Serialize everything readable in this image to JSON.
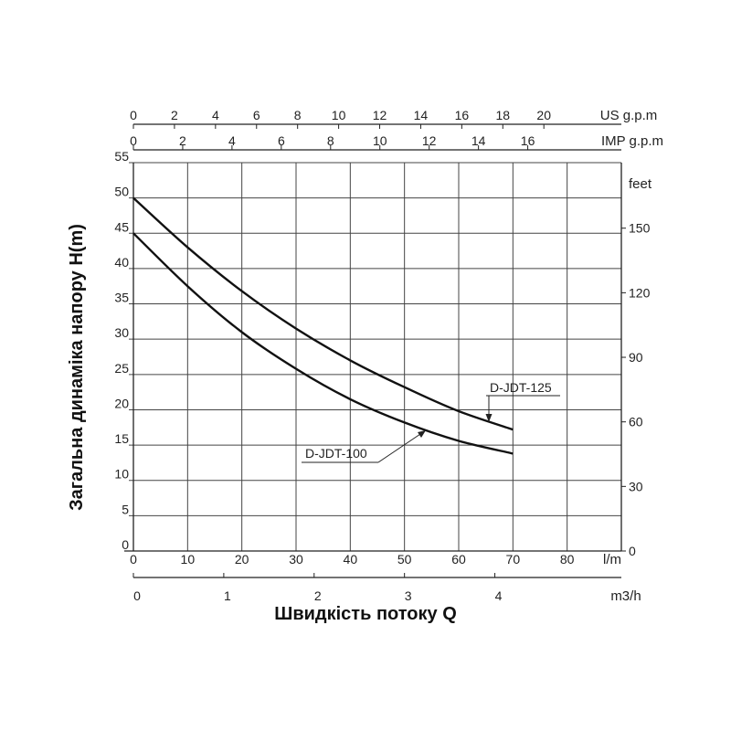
{
  "chart_data": {
    "type": "line",
    "xlabel": "Швидкість потоку Q",
    "ylabel": "Загальна динаміка напору H(m)",
    "x_primary": {
      "unit": "l/m",
      "ticks": [
        0,
        10,
        20,
        30,
        40,
        50,
        60,
        70,
        80
      ],
      "range": [
        0,
        90
      ]
    },
    "x_m3h": {
      "unit": "m3/h",
      "ticks": [
        0,
        1,
        2,
        3,
        4
      ]
    },
    "x_us_gpm": {
      "unit": "US g.p.m",
      "ticks": [
        0,
        2,
        4,
        6,
        8,
        10,
        12,
        14,
        16,
        18,
        20
      ]
    },
    "x_imp_gpm": {
      "unit": "IMP g.p.m",
      "ticks": [
        0,
        2,
        4,
        6,
        8,
        10,
        12,
        14,
        16
      ]
    },
    "y_primary": {
      "unit": "H(m)",
      "ticks": [
        0,
        5,
        10,
        15,
        20,
        25,
        30,
        35,
        40,
        45,
        50,
        55
      ],
      "range": [
        0,
        55
      ]
    },
    "y_feet": {
      "unit": "feet",
      "ticks": [
        0,
        30,
        60,
        90,
        120,
        150
      ]
    },
    "grid": true,
    "series": [
      {
        "name": "D-JDT-125",
        "x": [
          0,
          10,
          20,
          30,
          40,
          50,
          60,
          70
        ],
        "y": [
          50,
          43,
          36.8,
          31.5,
          27,
          23.2,
          19.8,
          17.2
        ]
      },
      {
        "name": "D-JDT-100",
        "x": [
          0,
          10,
          20,
          30,
          40,
          50,
          60,
          70
        ],
        "y": [
          45,
          37.5,
          31,
          25.8,
          21.5,
          18.2,
          15.6,
          13.8
        ]
      }
    ]
  }
}
